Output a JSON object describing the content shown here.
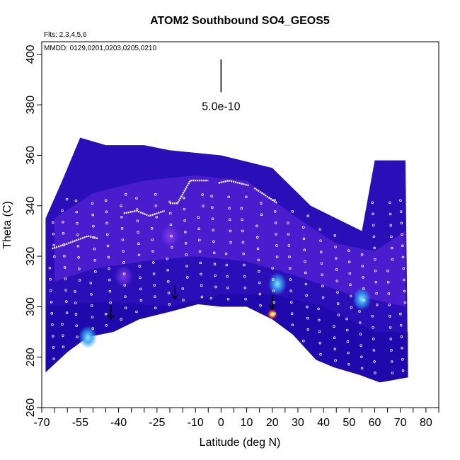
{
  "chart_data": {
    "type": "heatmap",
    "title": "ATOM2 Southbound SO4_GEOS5",
    "annotations": {
      "flights": "Flts: 2,3,4,5,6",
      "dates": "MMDD: 0129,0201,0203,0205,0210",
      "scale_label": "5.0e-10"
    },
    "xlabel": "Latitude (deg N)",
    "ylabel": "Theta (C)",
    "xlim": [
      -70,
      85
    ],
    "ylim": [
      260,
      405
    ],
    "x_ticks": [
      -70,
      -55,
      -40,
      -25,
      -10,
      0,
      10,
      20,
      30,
      40,
      50,
      60,
      70,
      80
    ],
    "x_minor_ticks": [
      -65,
      -60,
      -50,
      -45,
      -35,
      -30,
      -20,
      -15,
      -5,
      5,
      15,
      25,
      35,
      45,
      55,
      65,
      75,
      85
    ],
    "y_ticks": [
      260,
      280,
      300,
      320,
      340,
      360,
      380,
      400
    ],
    "grid": false,
    "colors": {
      "background_field": "#2a0fb8",
      "deep_blue": "#1606a4",
      "purple": "#6f2ce6",
      "cyan": "#49c8f5",
      "hot": "#ffdd33",
      "track": "#ffffff"
    },
    "surface_boundary": [
      {
        "lat": -68.5,
        "theta": 274
      },
      {
        "lat": -60,
        "theta": 282
      },
      {
        "lat": -52,
        "theta": 288
      },
      {
        "lat": -42,
        "theta": 290
      },
      {
        "lat": -32,
        "theta": 295
      },
      {
        "lat": -20,
        "theta": 298
      },
      {
        "lat": -9,
        "theta": 301
      },
      {
        "lat": 0,
        "theta": 300
      },
      {
        "lat": 10,
        "theta": 300
      },
      {
        "lat": 20,
        "theta": 295
      },
      {
        "lat": 28,
        "theta": 289
      },
      {
        "lat": 37,
        "theta": 279
      },
      {
        "lat": 44,
        "theta": 276
      },
      {
        "lat": 54,
        "theta": 273
      },
      {
        "lat": 62,
        "theta": 270
      },
      {
        "lat": 73,
        "theta": 272
      }
    ],
    "top_boundary": [
      {
        "lat": -68.5,
        "theta": 335
      },
      {
        "lat": -62,
        "theta": 350
      },
      {
        "lat": -55,
        "theta": 367
      },
      {
        "lat": -45,
        "theta": 364
      },
      {
        "lat": -30,
        "theta": 364
      },
      {
        "lat": -20,
        "theta": 362
      },
      {
        "lat": 0,
        "theta": 360
      },
      {
        "lat": 20,
        "theta": 355
      },
      {
        "lat": 35,
        "theta": 340
      },
      {
        "lat": 45,
        "theta": 335
      },
      {
        "lat": 55,
        "theta": 330
      },
      {
        "lat": 60,
        "theta": 358
      },
      {
        "lat": 72,
        "theta": 358
      }
    ],
    "hotspots": [
      {
        "lat": 55,
        "theta": 303,
        "color": "cyan"
      },
      {
        "lat": 22,
        "theta": 309,
        "color": "cyan"
      },
      {
        "lat": 20,
        "theta": 297,
        "color": "hot"
      },
      {
        "lat": -52,
        "theta": 288,
        "color": "cyan"
      },
      {
        "lat": -20,
        "theta": 328,
        "color": "purple"
      },
      {
        "lat": -38,
        "theta": 312,
        "color": "purple"
      }
    ],
    "arrows": [
      {
        "lat": -43,
        "theta": 295
      },
      {
        "lat": -18,
        "theta": 303
      },
      {
        "lat": 20,
        "theta": 299
      }
    ],
    "flight_tracks": [
      [
        [
          -66,
          323
        ],
        [
          -60,
          325
        ],
        [
          -52,
          328
        ],
        [
          -48,
          327
        ]
      ],
      [
        [
          -38,
          337
        ],
        [
          -33,
          338
        ],
        [
          -28,
          336
        ],
        [
          -22,
          338
        ]
      ],
      [
        [
          -20,
          341
        ],
        [
          -17,
          341
        ],
        [
          -12,
          350
        ],
        [
          -5,
          350
        ]
      ],
      [
        [
          -1,
          349
        ],
        [
          3,
          350
        ],
        [
          7,
          349
        ],
        [
          11,
          348
        ]
      ],
      [
        [
          13,
          347
        ],
        [
          16,
          345
        ],
        [
          19,
          343
        ],
        [
          22,
          341
        ]
      ]
    ],
    "vertical_profiles": [
      -66,
      -61,
      -56,
      -50,
      -44,
      -38,
      -32,
      -26,
      -20,
      -14,
      -8,
      -3,
      3,
      9,
      15,
      21,
      27,
      33,
      39,
      45,
      50,
      55,
      60,
      66,
      71
    ]
  }
}
